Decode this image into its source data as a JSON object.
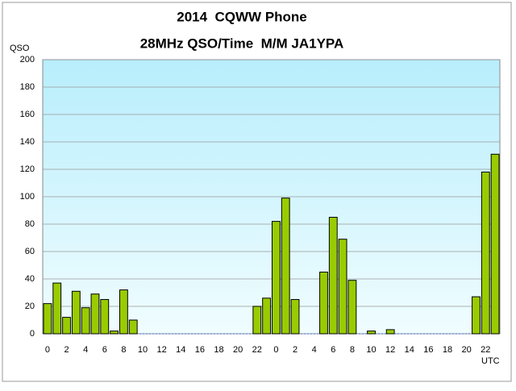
{
  "chart_data": {
    "type": "bar",
    "title": "2014  CQWW Phone",
    "subtitle": "28MHz QSO/Time  M/M JA1YPA",
    "y_label": "QSO",
    "x_label": "UTC",
    "categories": [
      "0",
      null,
      "2",
      null,
      "4",
      null,
      "6",
      null,
      "8",
      null,
      "10",
      null,
      "12",
      null,
      "14",
      null,
      "16",
      null,
      "18",
      null,
      "20",
      null,
      "22",
      null,
      "0",
      null,
      "2",
      null,
      "4",
      null,
      "6",
      null,
      "8",
      null,
      "10",
      null,
      "12",
      null,
      "14",
      null,
      "16",
      null,
      "18",
      null,
      "20",
      null,
      "22",
      null
    ],
    "values": [
      22,
      37,
      12,
      31,
      19,
      29,
      25,
      2,
      32,
      10,
      0,
      0,
      0,
      0,
      0,
      0,
      0,
      0,
      0,
      0,
      0,
      0,
      20,
      26,
      82,
      99,
      25,
      0,
      0,
      45,
      85,
      69,
      39,
      0,
      2,
      0,
      3,
      0,
      0,
      0,
      0,
      0,
      0,
      0,
      0,
      27,
      118,
      131
    ],
    "color": "#99cc00",
    "ylim": [
      0,
      200
    ],
    "yticks": [
      0,
      20,
      40,
      60,
      80,
      100,
      120,
      140,
      160,
      180,
      200
    ],
    "grid": true
  }
}
